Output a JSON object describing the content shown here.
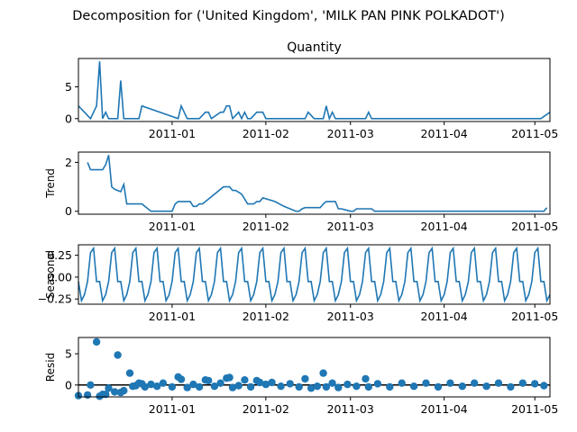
{
  "suptitle": "Decomposition for ('United Kingdom', 'MILK PAN PINK POLKADOT')",
  "colors": {
    "line": "#1f77b4",
    "marker": "#1f77b4",
    "zero_line": "#000000",
    "axes": "#000000"
  },
  "x_ticks": [
    "2011-01",
    "2011-02",
    "2011-03",
    "2011-04",
    "2011-05"
  ],
  "chart_data": [
    {
      "type": "line",
      "title": "Quantity",
      "ylabel": "",
      "x_range": [
        "2010-12-01",
        "2011-05-06"
      ],
      "ylim": [
        -0.45,
        9.45
      ],
      "y_ticks": [
        0,
        5
      ],
      "series": [
        {
          "x": [
            "2010-12-01",
            "2010-12-03",
            "2010-12-05",
            "2010-12-07",
            "2010-12-08",
            "2010-12-09",
            "2010-12-10",
            "2010-12-11",
            "2010-12-14",
            "2010-12-15",
            "2010-12-16",
            "2010-12-20",
            "2010-12-21",
            "2010-12-22",
            "2011-01-03",
            "2011-01-04",
            "2011-01-05",
            "2011-01-06",
            "2011-01-10",
            "2011-01-12",
            "2011-01-13",
            "2011-01-14",
            "2011-01-17",
            "2011-01-18",
            "2011-01-19",
            "2011-01-20",
            "2011-01-21",
            "2011-01-23",
            "2011-01-24",
            "2011-01-25",
            "2011-01-26",
            "2011-01-27",
            "2011-01-29",
            "2011-01-31",
            "2011-02-01",
            "2011-02-03",
            "2011-02-14",
            "2011-02-15",
            "2011-02-17",
            "2011-02-20",
            "2011-02-21",
            "2011-02-22",
            "2011-02-23",
            "2011-02-24",
            "2011-02-25",
            "2011-03-06",
            "2011-03-07",
            "2011-03-08",
            "2011-05-03",
            "2011-05-06"
          ],
          "values": [
            2,
            1,
            0,
            2,
            9,
            0,
            1,
            0,
            0,
            6,
            0,
            0,
            0,
            2,
            0,
            2,
            1,
            0,
            0,
            1,
            1,
            0,
            1,
            1,
            2,
            2,
            0,
            1,
            0,
            1,
            0,
            0,
            1,
            1,
            0,
            0,
            0,
            1,
            0,
            0,
            2,
            0,
            1,
            0,
            0,
            0,
            1,
            0,
            0,
            1
          ]
        }
      ]
    },
    {
      "type": "line",
      "title": "",
      "ylabel": "Trend",
      "x_range": [
        "2010-12-01",
        "2011-05-06"
      ],
      "ylim": [
        -0.12,
        2.42
      ],
      "y_ticks": [
        0,
        2
      ],
      "series": [
        {
          "x": [
            "2010-12-04",
            "2010-12-05",
            "2010-12-09",
            "2010-12-10",
            "2010-12-11",
            "2010-12-12",
            "2010-12-13",
            "2010-12-15",
            "2010-12-16",
            "2010-12-17",
            "2010-12-18",
            "2010-12-22",
            "2010-12-25",
            "2010-12-26",
            "2011-01-01",
            "2011-01-02",
            "2011-01-03",
            "2011-01-07",
            "2011-01-08",
            "2011-01-09",
            "2011-01-10",
            "2011-01-11",
            "2011-01-13",
            "2011-01-18",
            "2011-01-20",
            "2011-01-21",
            "2011-01-22",
            "2011-01-24",
            "2011-01-26",
            "2011-01-27",
            "2011-01-28",
            "2011-01-29",
            "2011-01-30",
            "2011-01-31",
            "2011-02-04",
            "2011-02-07",
            "2011-02-11",
            "2011-02-12",
            "2011-02-13",
            "2011-02-14",
            "2011-02-15",
            "2011-02-16",
            "2011-02-17",
            "2011-02-18",
            "2011-02-19",
            "2011-02-20",
            "2011-02-21",
            "2011-02-24",
            "2011-02-25",
            "2011-02-26",
            "2011-03-01",
            "2011-03-02",
            "2011-03-03",
            "2011-03-04",
            "2011-03-05",
            "2011-03-06",
            "2011-03-08",
            "2011-03-09",
            "2011-03-11",
            "2011-03-12",
            "2011-05-04",
            "2011-05-05"
          ],
          "values": [
            2,
            1.7,
            1.7,
            1.9,
            2.3,
            1,
            0.9,
            0.8,
            1.1,
            0.3,
            0.3,
            0.3,
            0.0,
            0.0,
            0.0,
            0.3,
            0.4,
            0.4,
            0.2,
            0.2,
            0.3,
            0.3,
            0.5,
            1,
            1,
            0.85,
            0.85,
            0.7,
            0.3,
            0.3,
            0.3,
            0.4,
            0.4,
            0.55,
            0.4,
            0.2,
            0,
            0,
            0.1,
            0.15,
            0.15,
            0.15,
            0.15,
            0.15,
            0.15,
            0.3,
            0.4,
            0.4,
            0.1,
            0.1,
            0,
            0,
            0.1,
            0.1,
            0.1,
            0.1,
            0.1,
            0.0,
            0.0,
            0.0,
            0.0,
            0.15
          ]
        }
      ]
    },
    {
      "type": "line",
      "title": "",
      "ylabel": "Seasonal",
      "x_range": [
        "2010-12-01",
        "2011-05-06"
      ],
      "ylim": [
        -0.31,
        0.37
      ],
      "y_ticks": [
        -0.25,
        0.0,
        0.25
      ],
      "y_tick_labels": [
        "−0.25",
        "0.00",
        "0.25"
      ],
      "period_days": 7,
      "pattern": [
        -0.05,
        -0.27,
        -0.2,
        -0.05,
        0.28,
        0.33,
        -0.05
      ],
      "series_start": "2010-12-01",
      "series_end": "2011-05-06"
    },
    {
      "type": "scatter",
      "title": "",
      "ylabel": "Resid",
      "x_range": [
        "2010-12-01",
        "2011-05-06"
      ],
      "ylim": [
        -1.9,
        7.6
      ],
      "y_ticks": [
        0,
        5
      ],
      "zero_line": true,
      "series": [
        {
          "x": [
            "2010-12-01",
            "2010-12-04",
            "2010-12-05",
            "2010-12-07",
            "2010-12-08",
            "2010-12-09",
            "2010-12-10",
            "2010-12-11",
            "2010-12-13",
            "2010-12-14",
            "2010-12-15",
            "2010-12-16",
            "2010-12-18",
            "2010-12-19",
            "2010-12-20",
            "2010-12-21",
            "2010-12-22",
            "2010-12-23",
            "2010-12-25",
            "2010-12-27",
            "2010-12-29",
            "2011-01-01",
            "2011-01-03",
            "2011-01-04",
            "2011-01-06",
            "2011-01-08",
            "2011-01-10",
            "2011-01-12",
            "2011-01-13",
            "2011-01-15",
            "2011-01-17",
            "2011-01-19",
            "2011-01-20",
            "2011-01-21",
            "2011-01-23",
            "2011-01-25",
            "2011-01-27",
            "2011-01-29",
            "2011-01-30",
            "2011-02-01",
            "2011-02-03",
            "2011-02-06",
            "2011-02-09",
            "2011-02-12",
            "2011-02-14",
            "2011-02-16",
            "2011-02-18",
            "2011-02-20",
            "2011-02-21",
            "2011-02-23",
            "2011-02-25",
            "2011-02-28",
            "2011-03-03",
            "2011-03-06",
            "2011-03-07",
            "2011-03-10",
            "2011-03-14",
            "2011-03-18",
            "2011-03-22",
            "2011-03-26",
            "2011-03-30",
            "2011-04-03",
            "2011-04-07",
            "2011-04-11",
            "2011-04-15",
            "2011-04-19",
            "2011-04-23",
            "2011-04-27",
            "2011-05-01",
            "2011-05-04"
          ],
          "values": [
            -1.7,
            -1.6,
            0.0,
            6.9,
            -1.8,
            -1.5,
            -1.5,
            -0.5,
            -1.1,
            4.8,
            -1.2,
            -0.9,
            1.9,
            -0.2,
            -0.1,
            0.3,
            0.2,
            -0.3,
            0.1,
            -0.2,
            0.3,
            -0.3,
            1.3,
            0.9,
            -0.4,
            0.1,
            -0.3,
            0.8,
            0.7,
            -0.2,
            0.3,
            1.1,
            1.2,
            -0.4,
            -0.1,
            0.8,
            -0.3,
            0.7,
            0.4,
            0.1,
            0.4,
            -0.2,
            0.2,
            -0.3,
            1.0,
            -0.5,
            -0.2,
            1.9,
            -0.3,
            0.3,
            -0.4,
            0.1,
            -0.2,
            1.0,
            -0.3,
            0.2,
            -0.3,
            0.3,
            -0.2,
            0.3,
            -0.3,
            0.3,
            -0.2,
            0.3,
            -0.2,
            0.3,
            -0.3,
            0.3,
            0.2,
            -0.1
          ]
        }
      ]
    }
  ]
}
